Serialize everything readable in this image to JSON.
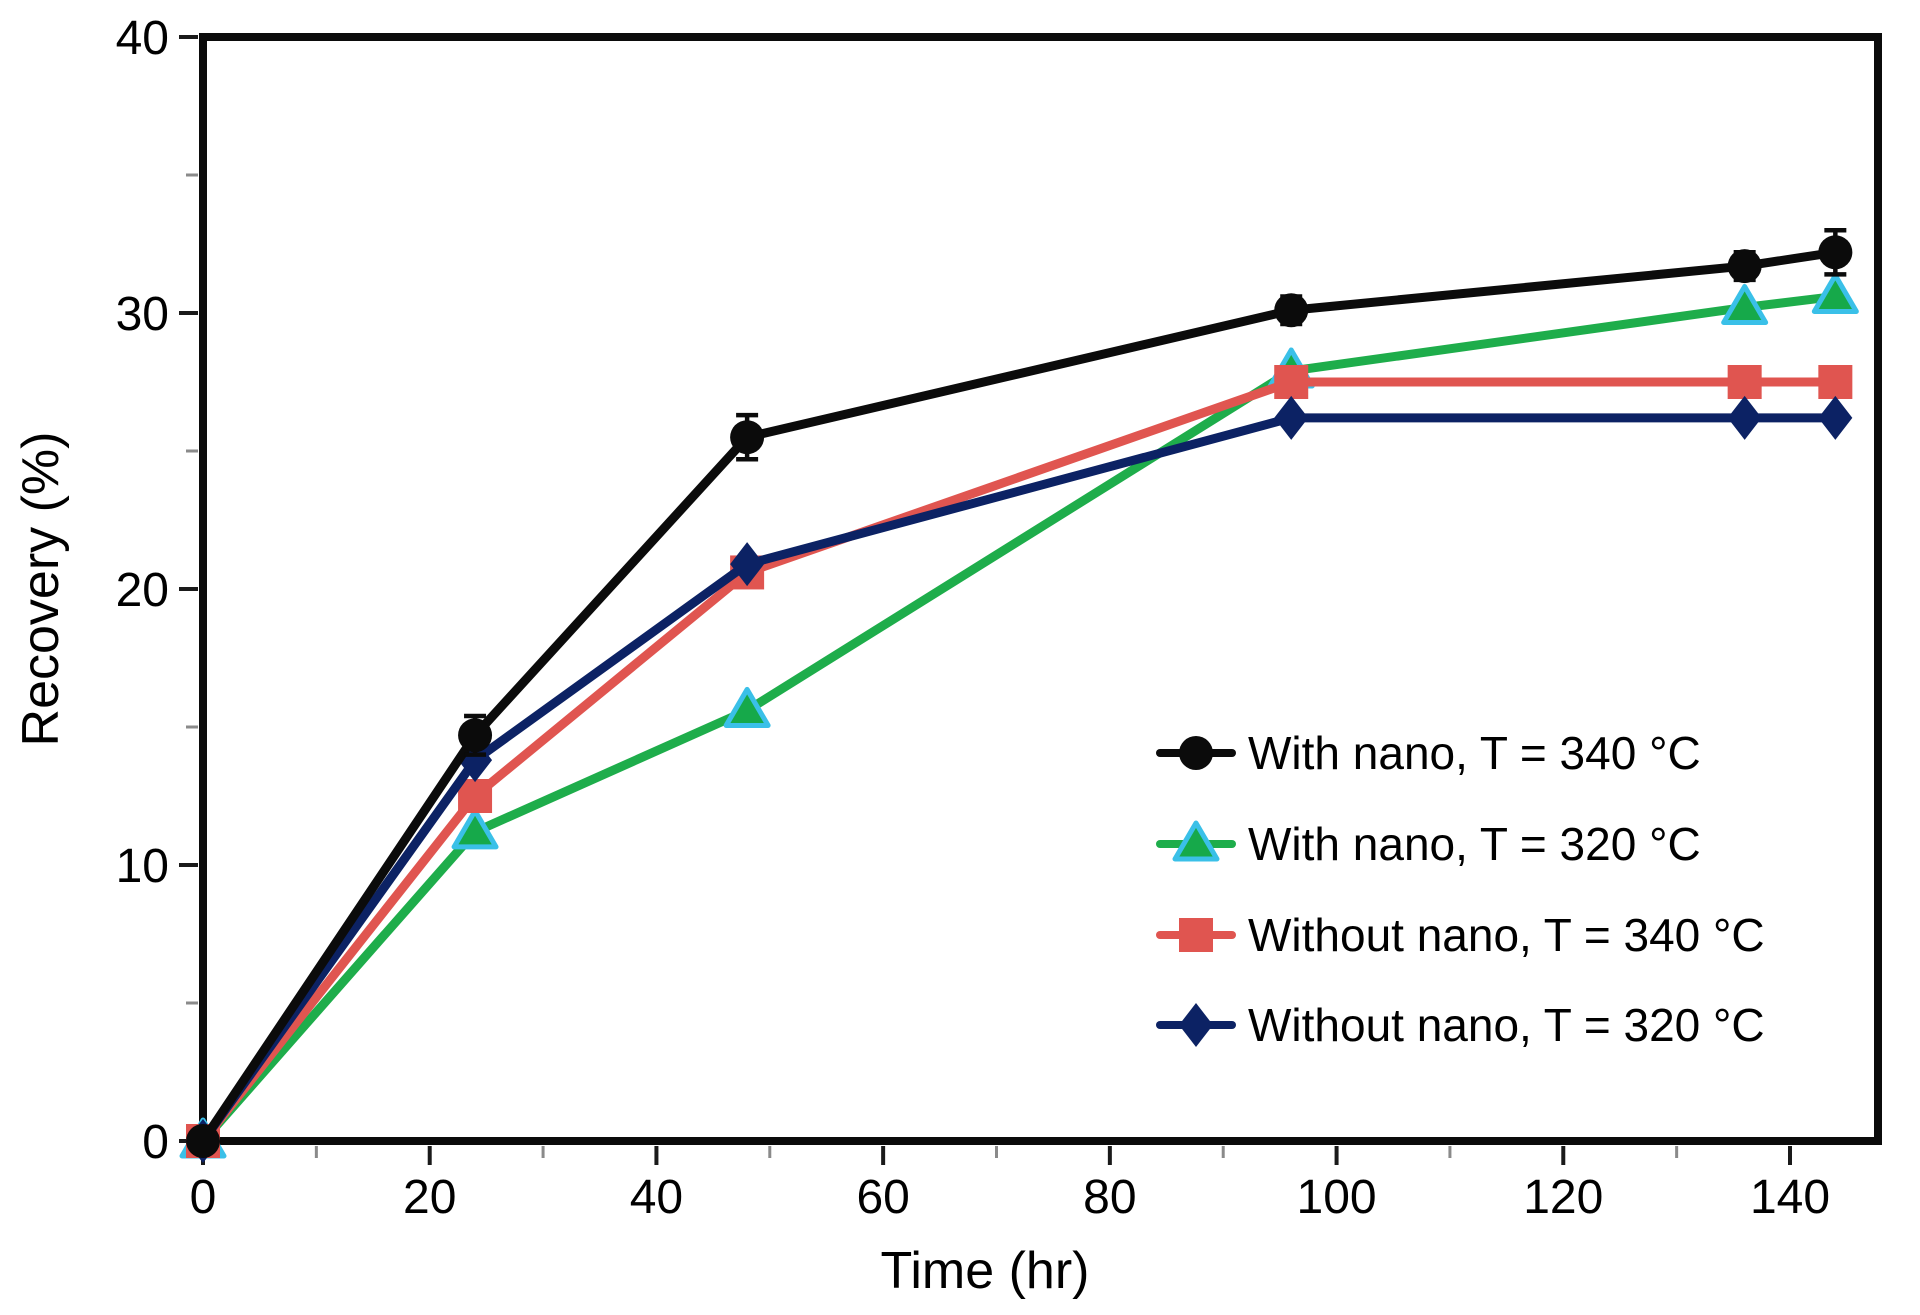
{
  "figure": {
    "background": "#ffffff",
    "border": "none"
  },
  "chart_data": {
    "type": "line",
    "title": "",
    "xlabel": "Time (hr)",
    "ylabel": "Recovery (%)",
    "xlim": [
      0,
      148
    ],
    "ylim": [
      0,
      40
    ],
    "x_ticks": [
      0,
      20,
      40,
      60,
      80,
      100,
      120,
      140
    ],
    "y_ticks": [
      0,
      10,
      20,
      30,
      40
    ],
    "x_minor_tick_step": 10,
    "y_minor_tick_step": 5,
    "grid": false,
    "legend_position": "inside lower-right",
    "x": [
      0,
      24,
      48,
      96,
      136,
      144
    ],
    "series": [
      {
        "name": "With nano, T = 340 °C",
        "color": "#0b0b0b",
        "marker": "circle",
        "marker_fill": "#0b0b0b",
        "marker_stroke": "#0b0b0b",
        "values": [
          0,
          14.7,
          25.5,
          30.1,
          31.7,
          32.2
        ],
        "error": [
          0,
          0.7,
          0.8,
          0.5,
          0.5,
          0.8
        ]
      },
      {
        "name": "With nano, T = 320 °C",
        "color": "#1ead4b",
        "marker": "triangle",
        "marker_fill": "#16a94a",
        "marker_stroke": "#3ac0e8",
        "values": [
          0,
          11.2,
          15.6,
          27.9,
          30.2,
          30.6
        ],
        "error": [
          0,
          0,
          0,
          0,
          0,
          0
        ]
      },
      {
        "name": "Without nano, T = 340 °C",
        "color": "#e05550",
        "marker": "square",
        "marker_fill": "#e05550",
        "marker_stroke": "#e05550",
        "values": [
          0,
          12.5,
          20.6,
          27.5,
          27.5,
          27.5
        ],
        "error": [
          0,
          0,
          0,
          0,
          0,
          0
        ]
      },
      {
        "name": "Without nano, T = 320 °C",
        "color": "#0c2264",
        "marker": "diamond",
        "marker_fill": "#0c2264",
        "marker_stroke": "#0c2264",
        "values": [
          0,
          13.8,
          20.9,
          26.2,
          26.2,
          26.2
        ],
        "error": [
          0,
          0,
          0,
          0,
          0,
          0
        ]
      }
    ]
  }
}
